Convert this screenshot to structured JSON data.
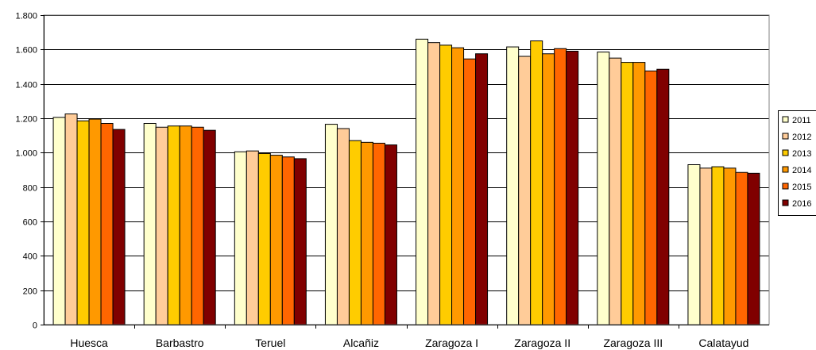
{
  "chart_data": {
    "type": "bar",
    "categories": [
      "Huesca",
      "Barbastro",
      "Teruel",
      "Alcañiz",
      "Zaragoza I",
      "Zaragoza II",
      "Zaragoza III",
      "Calatayud"
    ],
    "series": [
      {
        "name": "2011",
        "color": "#FFFFCC",
        "values": [
          1205,
          1170,
          1005,
          1165,
          1660,
          1615,
          1585,
          930
        ]
      },
      {
        "name": "2012",
        "color": "#FFCC99",
        "values": [
          1225,
          1148,
          1010,
          1140,
          1640,
          1560,
          1550,
          910
        ]
      },
      {
        "name": "2013",
        "color": "#FFCC00",
        "values": [
          1185,
          1155,
          995,
          1070,
          1625,
          1650,
          1525,
          918
        ]
      },
      {
        "name": "2014",
        "color": "#FF9900",
        "values": [
          1195,
          1155,
          985,
          1060,
          1610,
          1575,
          1525,
          910
        ]
      },
      {
        "name": "2015",
        "color": "#FF6600",
        "values": [
          1170,
          1148,
          975,
          1055,
          1545,
          1605,
          1475,
          885
        ]
      },
      {
        "name": "2016",
        "color": "#800000",
        "values": [
          1135,
          1130,
          965,
          1045,
          1575,
          1590,
          1485,
          880
        ]
      }
    ],
    "ylim": [
      0,
      1800
    ],
    "yticks": [
      0,
      200,
      400,
      600,
      800,
      1000,
      1200,
      1400,
      1600,
      1800
    ],
    "ytick_labels": [
      "0",
      "200",
      "400",
      "600",
      "800",
      "1.000",
      "1.200",
      "1.400",
      "1.600",
      "1.800"
    ],
    "grid": true,
    "legend_position": "right"
  }
}
